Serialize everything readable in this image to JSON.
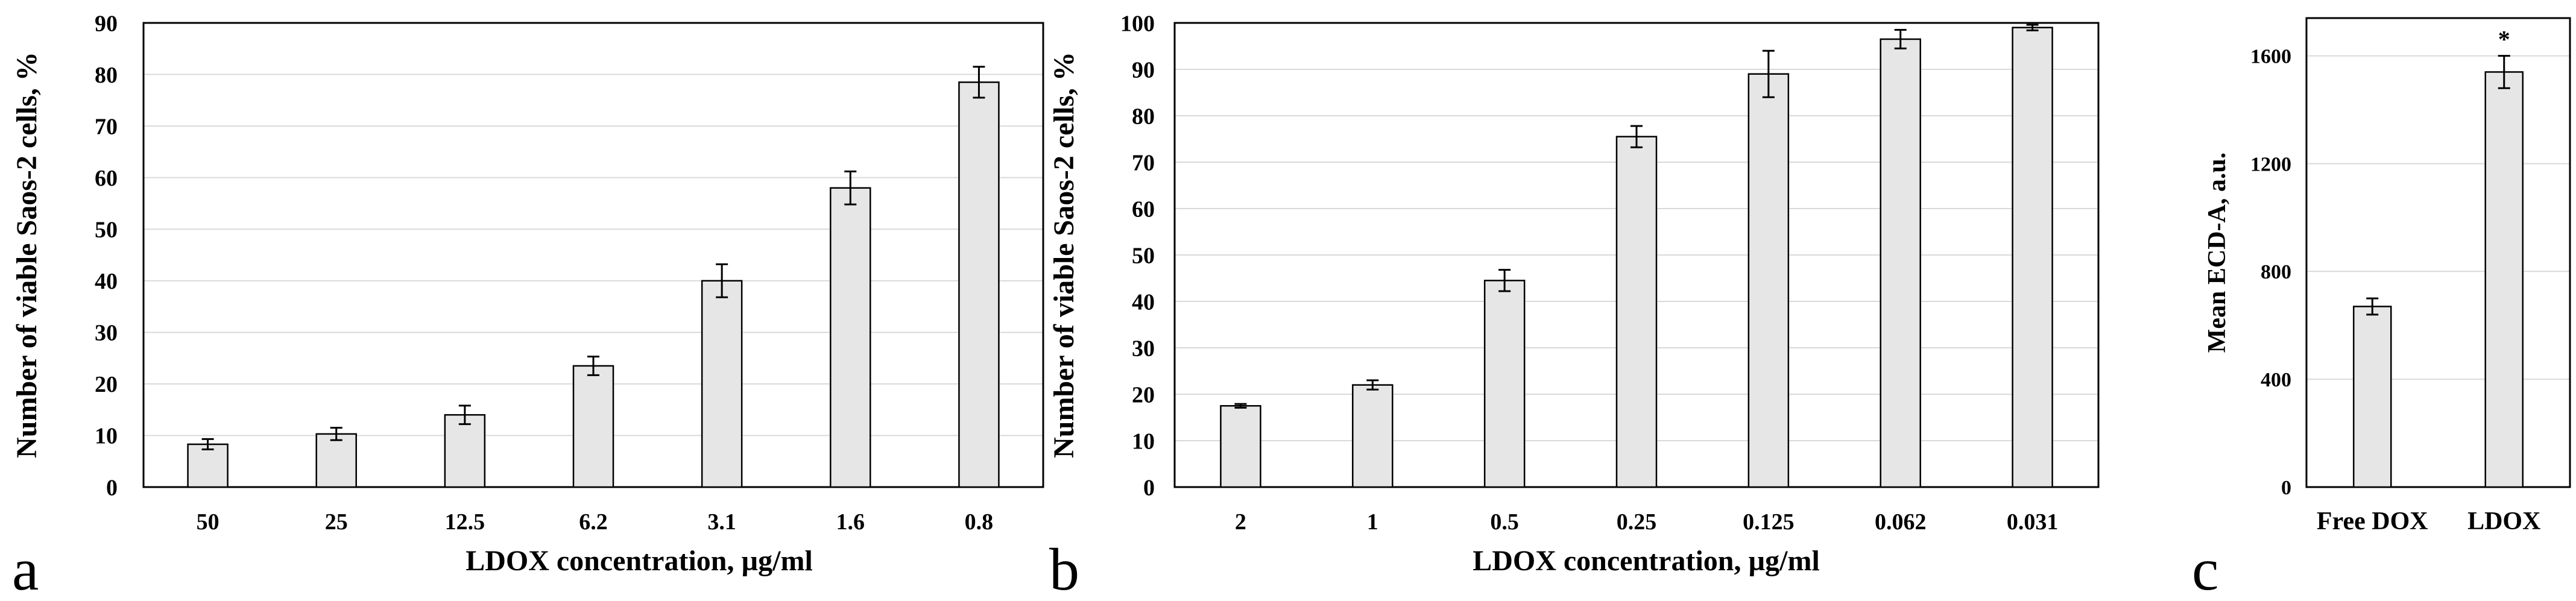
{
  "chart_data": [
    {
      "type": "bar",
      "panel_label": "a",
      "xlabel": "LDOX concentration, µg/ml",
      "ylabel": "Number of viable Saos-2 cells, %",
      "ylim": [
        0,
        90
      ],
      "yticks": [
        "0",
        "10",
        "20",
        "30",
        "40",
        "50",
        "60",
        "70",
        "80",
        "90"
      ],
      "grid": true,
      "categories": [
        "50",
        "25",
        "12.5",
        "6.2",
        "3.1",
        "1.6",
        "0.8"
      ],
      "values": [
        8.3,
        10.3,
        14,
        23.5,
        40,
        58,
        78.5
      ],
      "errors": [
        1,
        1.2,
        1.8,
        1.8,
        3.2,
        3.2,
        3
      ],
      "bar_color": "#e6e6e6",
      "annotations": []
    },
    {
      "type": "bar",
      "panel_label": "b",
      "xlabel": "LDOX concentration, µg/ml",
      "ylabel": "Number of viable Saos-2 cells, %",
      "ylim": [
        0,
        100
      ],
      "yticks": [
        "0",
        "10",
        "20",
        "30",
        "40",
        "50",
        "60",
        "70",
        "80",
        "90",
        "100"
      ],
      "grid": true,
      "categories": [
        "2",
        "1",
        "0.5",
        "0.25",
        "0.125",
        "0.062",
        "0.031"
      ],
      "values": [
        17.5,
        22,
        44.5,
        75.5,
        89,
        96.5,
        99
      ],
      "errors": [
        0.4,
        1,
        2.3,
        2.3,
        5,
        2,
        0.6
      ],
      "bar_color": "#e6e6e6",
      "annotations": []
    },
    {
      "type": "bar",
      "panel_label": "c",
      "xlabel": "",
      "ylabel": "Mean ECD-A, a.u.",
      "ylim": [
        0,
        1740
      ],
      "yticks": [
        "0",
        "400",
        "800",
        "1200",
        "1600"
      ],
      "grid": true,
      "categories": [
        "Free DOX",
        "LDOX"
      ],
      "values": [
        670,
        1540
      ],
      "errors": [
        30,
        60
      ],
      "bar_color": "#e6e6e6",
      "annotations": [
        "",
        "*"
      ]
    }
  ]
}
